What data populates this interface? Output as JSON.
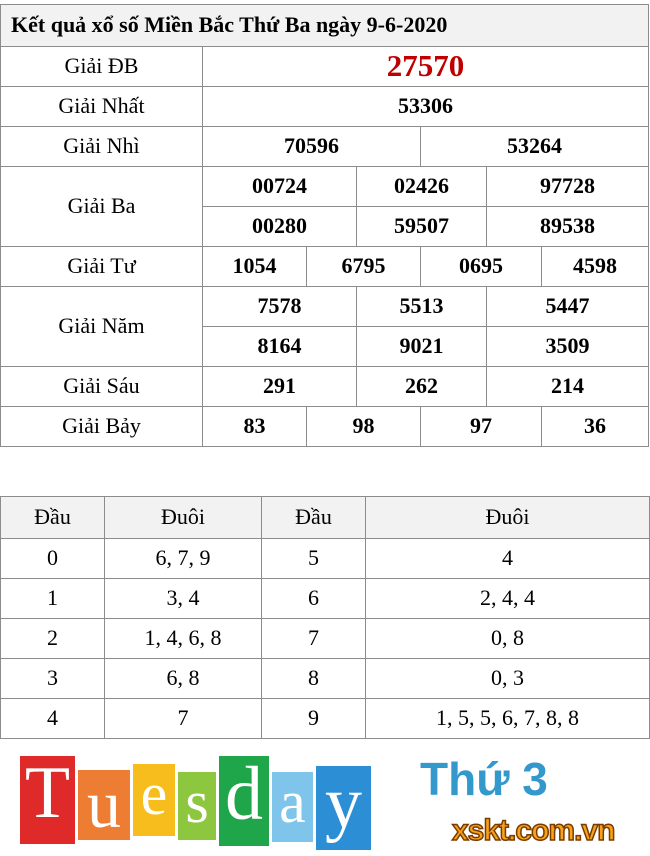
{
  "title": "Kết quả xổ số Miền Bắc Thứ Ba ngày 9-6-2020",
  "prizes": {
    "db": {
      "label": "Giải ĐB",
      "numbers": [
        "27570"
      ]
    },
    "nhat": {
      "label": "Giải Nhất",
      "numbers": [
        "53306"
      ]
    },
    "nhi": {
      "label": "Giải Nhì",
      "numbers": [
        "70596",
        "53264"
      ]
    },
    "ba": {
      "label": "Giải Ba",
      "numbers": [
        "00724",
        "02426",
        "97728",
        "00280",
        "59507",
        "89538"
      ]
    },
    "tu": {
      "label": "Giải Tư",
      "numbers": [
        "1054",
        "6795",
        "0695",
        "4598"
      ]
    },
    "nam": {
      "label": "Giải Năm",
      "numbers": [
        "7578",
        "5513",
        "5447",
        "8164",
        "9021",
        "3509"
      ]
    },
    "sau": {
      "label": "Giải Sáu",
      "numbers": [
        "291",
        "262",
        "214"
      ]
    },
    "bay": {
      "label": "Giải Bảy",
      "numbers": [
        "83",
        "98",
        "97",
        "36"
      ]
    }
  },
  "loto": {
    "headers": [
      "Đầu",
      "Đuôi",
      "Đầu",
      "Đuôi"
    ],
    "rows": [
      [
        "0",
        "6, 7, 9",
        "5",
        "4"
      ],
      [
        "1",
        "3, 4",
        "6",
        "2, 4, 4"
      ],
      [
        "2",
        "1, 4, 6, 8",
        "7",
        "0, 8"
      ],
      [
        "3",
        "6, 8",
        "8",
        "0, 3"
      ],
      [
        "4",
        "7",
        "9",
        "1, 5, 5, 6, 7, 8, 8"
      ]
    ]
  },
  "overlay": {
    "word": [
      "T",
      "u",
      "e",
      "s",
      "d",
      "a",
      "y"
    ],
    "colors": [
      "#e02a2a",
      "#ee7d34",
      "#f6bd1c",
      "#8dc63f",
      "#1fa64b",
      "#7fc4ea",
      "#2c8fd6"
    ],
    "day_label": "Thứ 3",
    "watermark": "xskt.com.vn"
  },
  "colors": {
    "special_prize": "#c00000",
    "header_bg": "#f2f2f2"
  }
}
